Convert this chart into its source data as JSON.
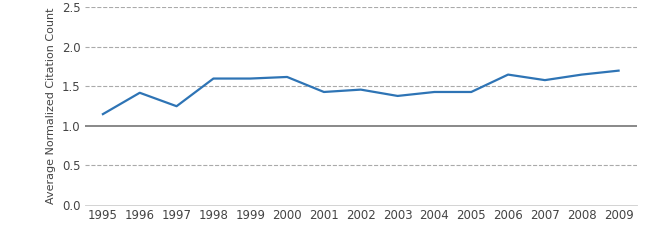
{
  "years": [
    1995,
    1996,
    1997,
    1998,
    1999,
    2000,
    2001,
    2002,
    2003,
    2004,
    2005,
    2006,
    2007,
    2008,
    2009
  ],
  "values": [
    1.15,
    1.42,
    1.25,
    1.6,
    1.6,
    1.62,
    1.43,
    1.46,
    1.38,
    1.43,
    1.43,
    1.65,
    1.58,
    1.65,
    1.7
  ],
  "line_color": "#2E74B5",
  "reference_line_value": 1.0,
  "reference_line_color": "#888888",
  "ylabel": "Average Normalized Citation Count",
  "ylim": [
    0.0,
    2.5
  ],
  "yticks": [
    0.0,
    0.5,
    1.0,
    1.5,
    2.0,
    2.5
  ],
  "grid_ticks": [
    0.5,
    1.5,
    2.0,
    2.5
  ],
  "grid_color": "#aaaaaa",
  "grid_linestyle": "--",
  "background_color": "#ffffff",
  "line_width": 1.6,
  "tick_fontsize": 8.5,
  "ylabel_fontsize": 8.0
}
